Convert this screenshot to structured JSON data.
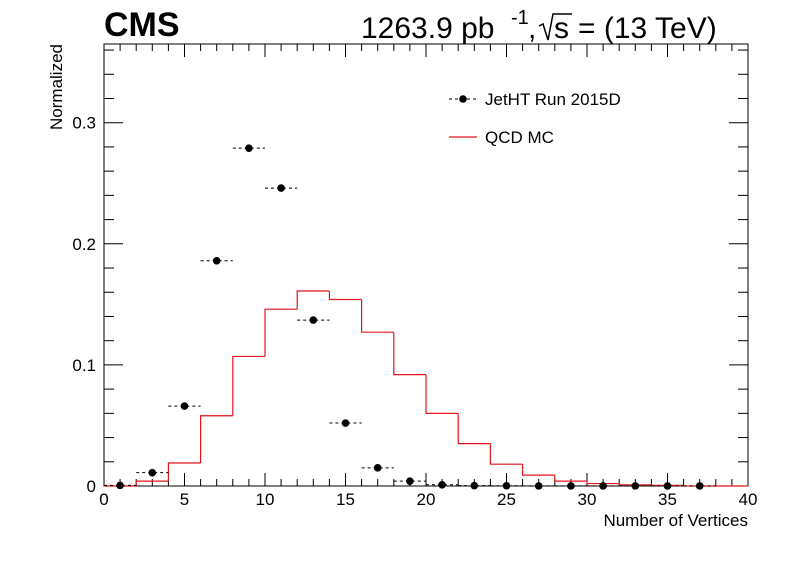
{
  "header": {
    "experiment": "CMS",
    "lumi_value": "1263.9 pb",
    "lumi_exp": "-1",
    "sqrt_label": "s",
    "energy": "=  (13 TeV)"
  },
  "chart_data": {
    "type": "scatter",
    "xlabel": "Number of Vertices",
    "ylabel": "Normalized",
    "xlim": [
      0,
      40
    ],
    "ylim": [
      0,
      0.365
    ],
    "x_ticks": [
      0,
      5,
      10,
      15,
      20,
      25,
      30,
      35,
      40
    ],
    "y_ticks": [
      0,
      0.1,
      0.2,
      0.3
    ],
    "x_tick_labels": [
      "0",
      "5",
      "10",
      "15",
      "20",
      "25",
      "30",
      "35",
      "40"
    ],
    "y_tick_labels": [
      "0",
      "0.1",
      "0.2",
      "0.3"
    ],
    "grid": false,
    "legend_position": "top-right",
    "bin_edges": [
      0,
      2,
      4,
      6,
      8,
      10,
      12,
      14,
      16,
      18,
      20,
      22,
      24,
      26,
      28,
      30,
      32,
      34,
      36,
      38,
      40
    ],
    "series": [
      {
        "name": "JetHT Run 2015D",
        "style": "markers",
        "color": "#000000",
        "x": [
          1,
          3,
          5,
          7,
          9,
          11,
          13,
          15,
          17,
          19,
          21,
          23,
          25,
          27,
          29,
          31,
          33,
          35,
          37
        ],
        "values": [
          0.0005,
          0.011,
          0.066,
          0.186,
          0.279,
          0.246,
          0.137,
          0.052,
          0.015,
          0.004,
          0.001,
          0.0003,
          0.0002,
          0.0001,
          0.0001,
          0.0001,
          0.0001,
          0.0001,
          0.0001
        ]
      },
      {
        "name": "QCD MC",
        "style": "histogram",
        "color": "#e8141e",
        "values": [
          0.0,
          0.004,
          0.019,
          0.058,
          0.107,
          0.146,
          0.161,
          0.154,
          0.127,
          0.092,
          0.06,
          0.035,
          0.018,
          0.009,
          0.004,
          0.002,
          0.001,
          0.0005,
          0.0,
          0.0
        ]
      }
    ]
  }
}
